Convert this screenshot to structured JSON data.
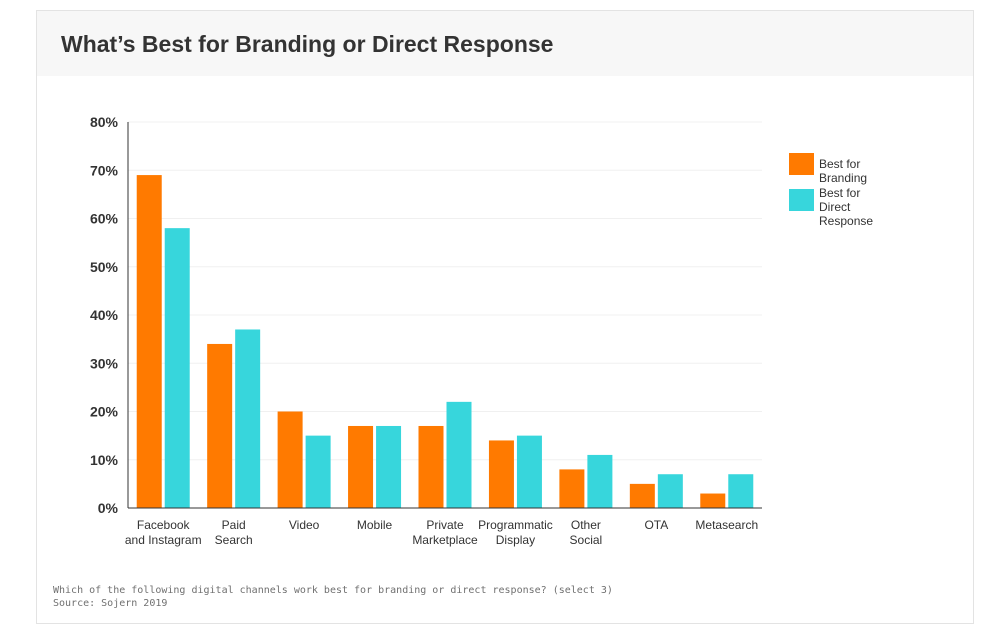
{
  "header": {
    "title": "What’s Best for Branding or Direct Response"
  },
  "footnote": {
    "question": "Which of the following digital channels work best for branding or direct response? (select 3)",
    "source": "Source: Sojern 2019"
  },
  "colors": {
    "branding": "#ff7a00",
    "direct_response": "#37d6dc"
  },
  "chart_data": {
    "type": "bar",
    "title": "What’s Best for Branding or Direct Response",
    "xlabel": "",
    "ylabel": "",
    "ylim": [
      0,
      80
    ],
    "yticks": [
      "0%",
      "10%",
      "20%",
      "30%",
      "40%",
      "50%",
      "60%",
      "70%",
      "80%"
    ],
    "categories": [
      "Facebook\nand Instagram",
      "Paid\nSearch",
      "Video",
      "Mobile",
      "Private\nMarketplace",
      "Programmatic\nDisplay",
      "Other\nSocial",
      "OTA",
      "Metasearch"
    ],
    "series": [
      {
        "name": "Best for Branding",
        "values": [
          69,
          34,
          20,
          17,
          17,
          14,
          8,
          5,
          3
        ]
      },
      {
        "name": "Best for\nDirect Response",
        "values": [
          58,
          37,
          15,
          17,
          22,
          15,
          11,
          7,
          7
        ]
      }
    ],
    "legend_position": "right",
    "grid": true
  }
}
